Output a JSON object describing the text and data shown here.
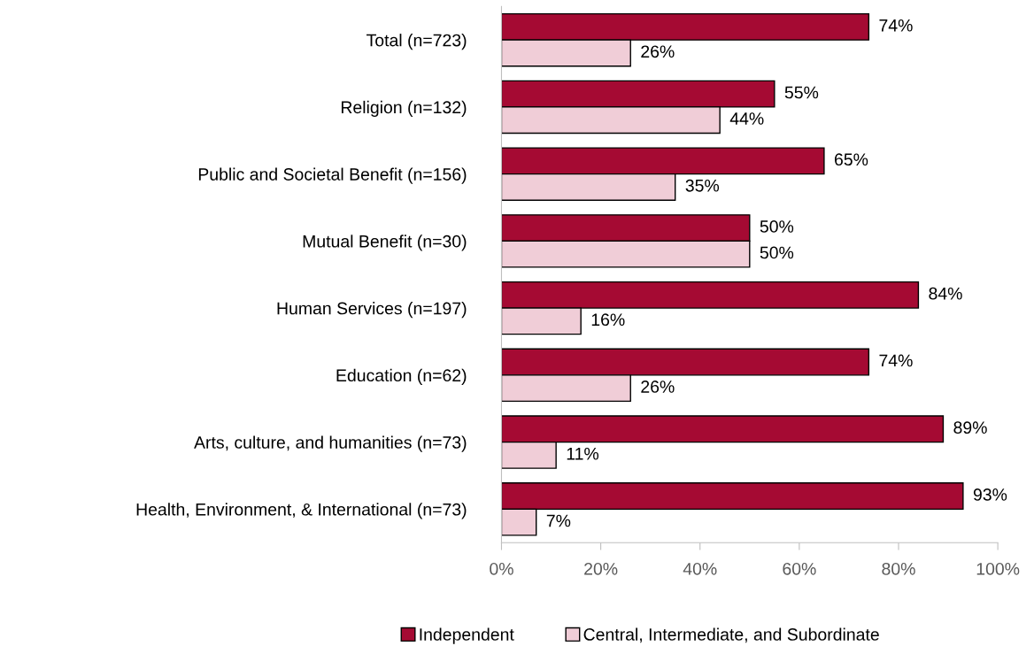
{
  "chart_data": {
    "type": "bar",
    "orientation": "horizontal",
    "categories": [
      "Total (n=723)",
      "Religion (n=132)",
      "Public and Societal Benefit (n=156)",
      "Mutual Benefit (n=30)",
      "Human Services (n=197)",
      "Education (n=62)",
      "Arts, culture, and humanities (n=73)",
      "Health, Environment, & International (n=73)"
    ],
    "series": [
      {
        "name": "Independent",
        "color": "#a50a33",
        "values": [
          74,
          55,
          65,
          50,
          84,
          74,
          89,
          93
        ],
        "value_labels": [
          "74%",
          "55%",
          "65%",
          "50%",
          "84%",
          "74%",
          "89%",
          "93%"
        ]
      },
      {
        "name": "Central, Intermediate, and Subordinate",
        "color": "#f0cdd7",
        "values": [
          26,
          44,
          35,
          50,
          16,
          26,
          11,
          7
        ],
        "value_labels": [
          "26%",
          "44%",
          "35%",
          "50%",
          "16%",
          "26%",
          "11%",
          "7%"
        ]
      }
    ],
    "xlim": [
      0,
      100
    ],
    "xticks": [
      {
        "value": 0,
        "label": "0%"
      },
      {
        "value": 20,
        "label": "20%"
      },
      {
        "value": 40,
        "label": "40%"
      },
      {
        "value": 60,
        "label": "60%"
      },
      {
        "value": 80,
        "label": "80%"
      },
      {
        "value": 100,
        "label": "100%"
      }
    ],
    "grid": false,
    "legend": "bottom"
  }
}
